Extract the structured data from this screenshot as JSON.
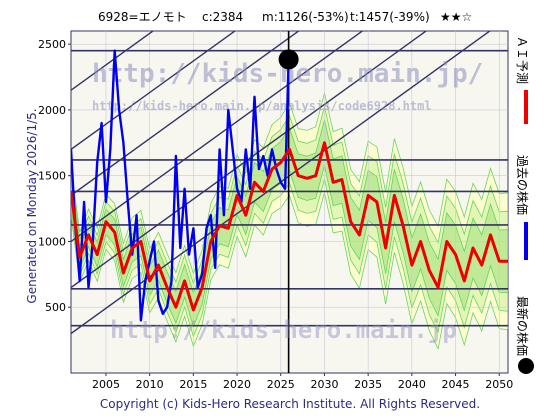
{
  "header": {
    "code_name": "6928=エノモト",
    "current": "c:2384",
    "min": "m:1126(-53%)",
    "target": "t:1457(-39%)",
    "rating": "★★☆"
  },
  "left_note": "Generated on Monday 2026/1/5.",
  "footer": "Copyright (c) Kids-Hero Research Institute. All Rights Reserved.",
  "watermarks": {
    "line1": "http://kids-hero.main.jp/",
    "line2": "http://kids-hero.main.jp/analysis/code6928.html",
    "line3": "http://kids-hero.main.jp"
  },
  "legend": [
    {
      "label": "ＡＩ予測",
      "color": "#ee0000",
      "marker": "line"
    },
    {
      "label": "過去の株価",
      "color": "#0000ee",
      "marker": "line"
    },
    {
      "label": "最新の株価",
      "color": "#000000",
      "marker": "dot"
    }
  ],
  "colors": {
    "background": "#f7f7f0",
    "fan_light": "#ffffc8",
    "fan_green": "#44cc44",
    "band_grey": "#d8d8d8",
    "trend": "#333366",
    "grid_dark": "#333366"
  },
  "chart_data": {
    "type": "line",
    "x_range": [
      2001,
      2051
    ],
    "y_range": [
      0,
      2600
    ],
    "x_ticks": [
      2005,
      2010,
      2015,
      2020,
      2025,
      2030,
      2035,
      2040,
      2045,
      2050
    ],
    "y_ticks": [
      500,
      1000,
      1500,
      2000,
      2500
    ],
    "horizontal_levels": [
      2450,
      1620,
      1380,
      1126,
      640,
      360
    ],
    "latest_point": {
      "x": 2025.9,
      "y": 2384
    },
    "current_date_x": 2025.9,
    "series": [
      {
        "name": "過去の株価",
        "color": "#0000ee",
        "x": [
          2001.0,
          2001.5,
          2002.0,
          2002.5,
          2003.0,
          2003.5,
          2004.0,
          2004.5,
          2005.0,
          2005.5,
          2006.0,
          2006.5,
          2007.0,
          2007.5,
          2008.0,
          2008.5,
          2009.0,
          2009.5,
          2010.0,
          2010.5,
          2011.0,
          2011.5,
          2012.0,
          2012.5,
          2013.0,
          2013.5,
          2014.0,
          2014.5,
          2015.0,
          2015.5,
          2016.0,
          2016.5,
          2017.0,
          2017.5,
          2018.0,
          2018.5,
          2019.0,
          2019.5,
          2020.0,
          2020.5,
          2021.0,
          2021.5,
          2022.0,
          2022.5,
          2023.0,
          2023.5,
          2024.0,
          2024.5,
          2025.0,
          2025.5,
          2025.9
        ],
        "y": [
          1700,
          1100,
          700,
          1300,
          650,
          1000,
          1600,
          1900,
          1300,
          1700,
          2450,
          2000,
          1750,
          1300,
          900,
          1200,
          400,
          700,
          850,
          1000,
          550,
          450,
          500,
          700,
          1650,
          950,
          1400,
          900,
          1100,
          650,
          750,
          1100,
          1200,
          800,
          1700,
          1200,
          2000,
          1700,
          1400,
          1300,
          1700,
          1400,
          2100,
          1550,
          1650,
          1500,
          1700,
          1550,
          1450,
          1400,
          2384
        ]
      },
      {
        "name": "ＡＩ予測",
        "color": "#ee0000",
        "x": [
          2001.0,
          2002.0,
          2003.0,
          2004.0,
          2005.0,
          2006.0,
          2007.0,
          2008.0,
          2009.0,
          2010.0,
          2011.0,
          2012.0,
          2013.0,
          2014.0,
          2015.0,
          2016.0,
          2017.0,
          2018.0,
          2019.0,
          2020.0,
          2021.0,
          2022.0,
          2023.0,
          2024.0,
          2025.0,
          2026.0,
          2027.0,
          2028.0,
          2029.0,
          2030.0,
          2031.0,
          2032.0,
          2033.0,
          2034.0,
          2035.0,
          2036.0,
          2037.0,
          2038.0,
          2039.0,
          2040.0,
          2041.0,
          2042.0,
          2043.0,
          2044.0,
          2045.0,
          2046.0,
          2047.0,
          2048.0,
          2049.0,
          2050.0,
          2051.0
        ],
        "y": [
          1380,
          880,
          1050,
          900,
          1150,
          1070,
          760,
          950,
          1000,
          700,
          820,
          650,
          500,
          700,
          480,
          650,
          1000,
          1120,
          1100,
          1350,
          1200,
          1450,
          1380,
          1550,
          1600,
          1700,
          1500,
          1480,
          1500,
          1750,
          1450,
          1470,
          1150,
          1050,
          1350,
          1300,
          950,
          1350,
          1120,
          820,
          1000,
          780,
          650,
          1000,
          900,
          700,
          950,
          820,
          1050,
          850,
          850
        ]
      }
    ]
  }
}
